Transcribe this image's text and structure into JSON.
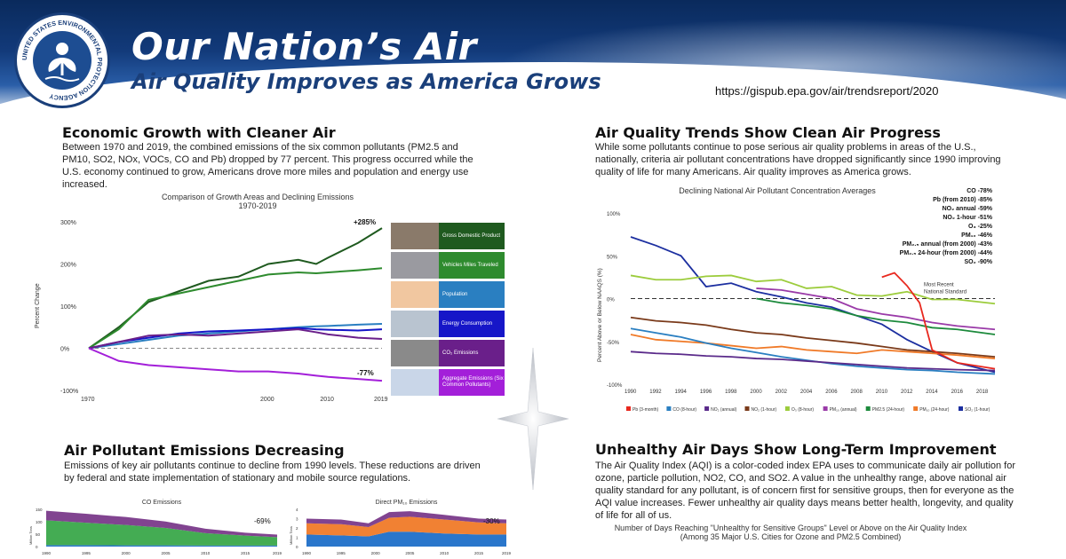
{
  "header": {
    "title": "Our Nation’s Air",
    "subtitle": "Air Quality Improves as America Grows",
    "url": "https://gispub.epa.gov/air/trendsreport/2020",
    "seal_text": "UNITED STATES ENVIRONMENTAL PROTECTION AGENCY"
  },
  "sections": {
    "econ": {
      "heading": "Economic Growth with Cleaner Air",
      "text": "Between 1970 and 2019, the combined emissions of the six common pollutants (PM2.5 and PM10, SO2, NOx, VOCs, CO and Pb) dropped by 77 percent. This progress occurred while the U.S. economy continued to grow, Americans drove more miles and population and energy use increased."
    },
    "trends": {
      "heading": "Air Quality Trends Show Clean Air Progress",
      "text": "While some pollutants continue to pose serious air quality problems in areas of the U.S., nationally, criteria air pollutant concentrations have dropped significantly since 1990 improving quality of life for many Americans. Air quality improves as America grows."
    },
    "emissions": {
      "heading": "Air Pollutant Emissions Decreasing",
      "text": "Emissions of key air pollutants continue to decline from 1990 levels. These reductions are driven by federal and state implementation of stationary and mobile source regulations."
    },
    "aqi": {
      "heading": "Unhealthy Air Days Show Long-Term Improvement",
      "text": "The Air Quality Index (AQI) is a color-coded index EPA uses to communicate daily air pollution for ozone, particle pollution, NO2, CO, and SO2. A value in the unhealthy range, above national air quality standard for any pollutant, is of concern first for sensitive groups, then for everyone as the AQI value increases. Fewer unhealthy air quality days means better health, longevity, and quality of life for all of us.",
      "chart_title_1": "Number of Days Reaching \"Unhealthy for Sensitive Groups\" Level or Above on the Air Quality Index",
      "chart_title_2": "(Among 35 Major U.S. Cities for Ozone and PM2.5 Combined)"
    }
  },
  "chart_data": [
    {
      "id": "growth",
      "type": "line",
      "title": "Comparison of Growth Areas and Declining Emissions",
      "subtitle": "1970-2019",
      "ylabel": "Percent Change",
      "xlim": [
        1970,
        2019
      ],
      "ylim": [
        -100,
        300
      ],
      "yticks": [
        "300%",
        "200%",
        "100%",
        "0%",
        "-100%"
      ],
      "xticks": [
        "1970",
        "2000",
        "2010",
        "2019"
      ],
      "annotations": [
        "+285%",
        "-77%"
      ],
      "x": [
        1970,
        1975,
        1980,
        1985,
        1990,
        1995,
        2000,
        2005,
        2008,
        2010,
        2015,
        2019
      ],
      "series": [
        {
          "name": "Gross Domestic Product",
          "color": "#1f5a1f",
          "values": [
            0,
            50,
            110,
            135,
            160,
            170,
            200,
            210,
            200,
            215,
            250,
            285
          ]
        },
        {
          "name": "Vehicles Miles Traveled",
          "color": "#2e8b2e",
          "values": [
            0,
            45,
            115,
            130,
            145,
            160,
            175,
            180,
            178,
            180,
            185,
            190
          ]
        },
        {
          "name": "Population",
          "color": "#2a7fc1",
          "values": [
            0,
            10,
            20,
            30,
            35,
            40,
            45,
            50,
            52,
            53,
            56,
            58
          ]
        },
        {
          "name": "Energy Consumption",
          "color": "#1616c8",
          "values": [
            0,
            15,
            25,
            35,
            40,
            42,
            45,
            48,
            45,
            44,
            42,
            45
          ]
        },
        {
          "name": "CO₂ Emissions",
          "color": "#6a1f8a",
          "values": [
            0,
            15,
            30,
            33,
            30,
            35,
            40,
            45,
            38,
            33,
            25,
            22
          ]
        },
        {
          "name": "Aggregate Emissions (Six Common Pollutants)",
          "color": "#a31fd9",
          "values": [
            0,
            -30,
            -40,
            -45,
            -50,
            -55,
            -55,
            -60,
            -65,
            -68,
            -73,
            -77
          ]
        }
      ]
    },
    {
      "id": "concentration",
      "type": "line",
      "title": "Declining National Air Pollutant Concentration Averages",
      "ylabel": "Percent Above or Below NAAQS (%)",
      "xlim": [
        1990,
        2019
      ],
      "ylim": [
        -100,
        100
      ],
      "yticks": [
        "100%",
        "50%",
        "0%",
        "-50%",
        "-100%"
      ],
      "xticks": [
        "1990",
        "1992",
        "1994",
        "1996",
        "1998",
        "2000",
        "2002",
        "2004",
        "2006",
        "2008",
        "2010",
        "2012",
        "2014",
        "2016",
        "2018"
      ],
      "reference_label": [
        "Most Recent",
        "National Standard"
      ],
      "changes": [
        "CO -78%",
        "Pb (from 2010) -85%",
        "NO₂ annual -59%",
        "NO₂ 1-hour -51%",
        "O₃ -25%",
        "PM₁₀ -46%",
        "PM₂.₅ annual (from 2000) -43%",
        "PM₂.₅ 24-hour (from 2000) -44%",
        "SO₂ -90%"
      ],
      "legend": [
        {
          "name": "Pb (3-month)",
          "color": "#e8281e"
        },
        {
          "name": "CO (8-hour)",
          "color": "#2a7fc1"
        },
        {
          "name": "NO₂ (annual)",
          "color": "#5a2a8a"
        },
        {
          "name": "NO₂ (1-hour)",
          "color": "#7a3a1a"
        },
        {
          "name": "O₃ (8-hour)",
          "color": "#9ccc3c"
        },
        {
          "name": "PM₁₀ (annual)",
          "color": "#9a3aa8"
        },
        {
          "name": "PM2.5 (24-hour)",
          "color": "#1c8a3c"
        },
        {
          "name": "PM₁₀ (24-hour)",
          "color": "#f07a28"
        },
        {
          "name": "SO₂ (1-hour)",
          "color": "#1c2fa0"
        }
      ],
      "series": [
        {
          "name": "SO₂ (1-hour)",
          "color": "#1c2fa0",
          "x": [
            1990,
            1992,
            1994,
            1996,
            1998,
            2000,
            2002,
            2004,
            2006,
            2008,
            2010,
            2012,
            2014,
            2016,
            2019
          ],
          "values": [
            72,
            62,
            50,
            14,
            18,
            8,
            2,
            -5,
            -10,
            -20,
            -30,
            -48,
            -62,
            -75,
            -86
          ]
        },
        {
          "name": "O₃ (8-hour)",
          "color": "#9ccc3c",
          "x": [
            1990,
            1992,
            1994,
            1996,
            1998,
            2000,
            2002,
            2004,
            2006,
            2008,
            2010,
            2012,
            2014,
            2016,
            2019
          ],
          "values": [
            27,
            22,
            22,
            26,
            27,
            20,
            22,
            12,
            14,
            4,
            3,
            8,
            -1,
            -1,
            -6
          ]
        },
        {
          "name": "PM2.5 (24-hour)",
          "color": "#1c8a3c",
          "x": [
            2000,
            2002,
            2004,
            2006,
            2008,
            2010,
            2012,
            2014,
            2016,
            2019
          ],
          "values": [
            0,
            -5,
            -8,
            -12,
            -20,
            -25,
            -28,
            -34,
            -36,
            -42
          ]
        },
        {
          "name": "PM₁₀ (annual)",
          "color": "#9a3aa8",
          "x": [
            2000,
            2002,
            2004,
            2006,
            2008,
            2010,
            2012,
            2014,
            2016,
            2019
          ],
          "values": [
            12,
            10,
            5,
            0,
            -12,
            -18,
            -22,
            -28,
            -32,
            -36
          ]
        },
        {
          "name": "NO₂ (1-hour)",
          "color": "#7a3a1a",
          "x": [
            1990,
            1992,
            1994,
            1996,
            1998,
            2000,
            2002,
            2004,
            2006,
            2008,
            2010,
            2012,
            2014,
            2016,
            2019
          ],
          "values": [
            -22,
            -26,
            -28,
            -31,
            -36,
            -40,
            -42,
            -46,
            -49,
            -52,
            -56,
            -60,
            -62,
            -64,
            -68
          ]
        },
        {
          "name": "PM₁₀ (24-hour)",
          "color": "#f07a28",
          "x": [
            1990,
            1992,
            1994,
            1996,
            1998,
            2000,
            2002,
            2004,
            2006,
            2008,
            2010,
            2012,
            2014,
            2016,
            2019
          ],
          "values": [
            -42,
            -48,
            -50,
            -52,
            -55,
            -58,
            -56,
            -60,
            -62,
            -64,
            -60,
            -62,
            -64,
            -66,
            -70
          ]
        },
        {
          "name": "CO (8-hour)",
          "color": "#2a7fc1",
          "x": [
            1990,
            1992,
            1994,
            1996,
            1998,
            2000,
            2002,
            2004,
            2006,
            2008,
            2010,
            2012,
            2014,
            2016,
            2019
          ],
          "values": [
            -35,
            -40,
            -45,
            -52,
            -58,
            -63,
            -68,
            -72,
            -76,
            -79,
            -81,
            -83,
            -84,
            -86,
            -88
          ]
        },
        {
          "name": "NO₂ (annual)",
          "color": "#5a2a8a",
          "x": [
            1990,
            1992,
            1994,
            1996,
            1998,
            2000,
            2002,
            2004,
            2006,
            2008,
            2010,
            2012,
            2014,
            2016,
            2019
          ],
          "values": [
            -62,
            -64,
            -65,
            -67,
            -68,
            -70,
            -71,
            -73,
            -75,
            -77,
            -79,
            -81,
            -82,
            -83,
            -84
          ]
        },
        {
          "name": "Pb (3-month)",
          "color": "#e8281e",
          "x": [
            2010,
            2011,
            2012,
            2013,
            2014,
            2016,
            2019
          ],
          "values": [
            25,
            30,
            15,
            -5,
            -60,
            -75,
            -82
          ]
        }
      ]
    },
    {
      "id": "co_emissions",
      "type": "area",
      "title": "CO Emissions",
      "ylabel": "Million Tons",
      "annotation": "-69%",
      "yticks": [
        "150",
        "100",
        "50",
        "0"
      ],
      "xticks": [
        "1990",
        "1995",
        "2000",
        "2005",
        "2010",
        "2015",
        "2019"
      ],
      "x": [
        1990,
        1995,
        2000,
        2005,
        2010,
        2015,
        2019
      ],
      "series": [
        {
          "name": "bottom",
          "color": "#1f6fc8",
          "values": [
            6,
            6,
            5,
            5,
            4,
            4,
            4
          ]
        },
        {
          "name": "middle",
          "color": "#3aa84a",
          "values": [
            100,
            90,
            82,
            70,
            50,
            40,
            34
          ]
        },
        {
          "name": "top",
          "color": "#7a3a8a",
          "values": [
            38,
            36,
            32,
            26,
            18,
            12,
            10
          ]
        }
      ]
    },
    {
      "id": "pm10_emissions",
      "type": "area",
      "title": "Direct PM₁₀ Emissions",
      "ylabel": "Million Tons",
      "annotation": "-30%",
      "yticks": [
        "4",
        "3",
        "2",
        "1",
        "0"
      ],
      "xticks": [
        "1990",
        "1995",
        "2000",
        "2005",
        "2010",
        "2015",
        "2019"
      ],
      "x": [
        1990,
        1995,
        1999,
        2002,
        2005,
        2010,
        2015,
        2019
      ],
      "series": [
        {
          "name": "bottom",
          "color": "#1f6fc8",
          "values": [
            1.3,
            1.2,
            1.1,
            1.6,
            1.6,
            1.4,
            1.3,
            1.3
          ]
        },
        {
          "name": "middle",
          "color": "#f07a28",
          "values": [
            1.2,
            1.2,
            1.0,
            1.5,
            1.6,
            1.5,
            1.3,
            1.2
          ]
        },
        {
          "name": "top",
          "color": "#7a3a8a",
          "values": [
            0.5,
            0.5,
            0.4,
            0.6,
            0.6,
            0.5,
            0.4,
            0.4
          ]
        }
      ]
    }
  ]
}
